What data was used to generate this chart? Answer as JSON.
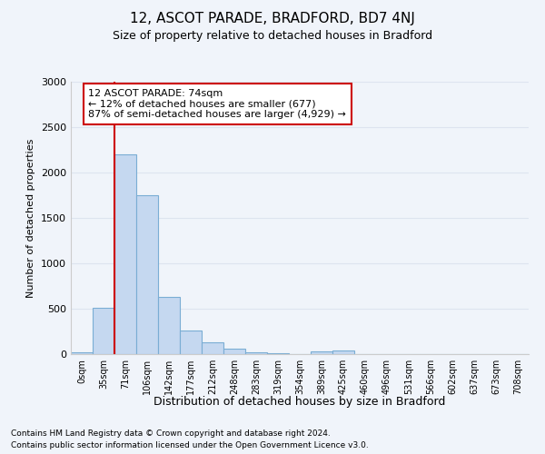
{
  "title1": "12, ASCOT PARADE, BRADFORD, BD7 4NJ",
  "title2": "Size of property relative to detached houses in Bradford",
  "xlabel": "Distribution of detached houses by size in Bradford",
  "ylabel": "Number of detached properties",
  "footnote1": "Contains HM Land Registry data © Crown copyright and database right 2024.",
  "footnote2": "Contains public sector information licensed under the Open Government Licence v3.0.",
  "bin_labels": [
    "0sqm",
    "35sqm",
    "71sqm",
    "106sqm",
    "142sqm",
    "177sqm",
    "212sqm",
    "248sqm",
    "283sqm",
    "319sqm",
    "354sqm",
    "389sqm",
    "425sqm",
    "460sqm",
    "496sqm",
    "531sqm",
    "566sqm",
    "602sqm",
    "637sqm",
    "673sqm",
    "708sqm"
  ],
  "bar_heights": [
    20,
    510,
    2200,
    1750,
    635,
    260,
    130,
    65,
    20,
    10,
    5,
    35,
    40,
    5,
    0,
    0,
    0,
    0,
    0,
    0,
    0
  ],
  "bar_color": "#c5d8f0",
  "bar_edge_color": "#7aadd4",
  "ylim": [
    0,
    3000
  ],
  "yticks": [
    0,
    500,
    1000,
    1500,
    2000,
    2500,
    3000
  ],
  "red_line_bin": 2,
  "red_line_color": "#cc0000",
  "annotation_text": "12 ASCOT PARADE: 74sqm\n← 12% of detached houses are smaller (677)\n87% of semi-detached houses are larger (4,929) →",
  "annotation_box_edge": "#cc0000",
  "bg_color": "#f0f4fa",
  "grid_color": "#e8edf5"
}
